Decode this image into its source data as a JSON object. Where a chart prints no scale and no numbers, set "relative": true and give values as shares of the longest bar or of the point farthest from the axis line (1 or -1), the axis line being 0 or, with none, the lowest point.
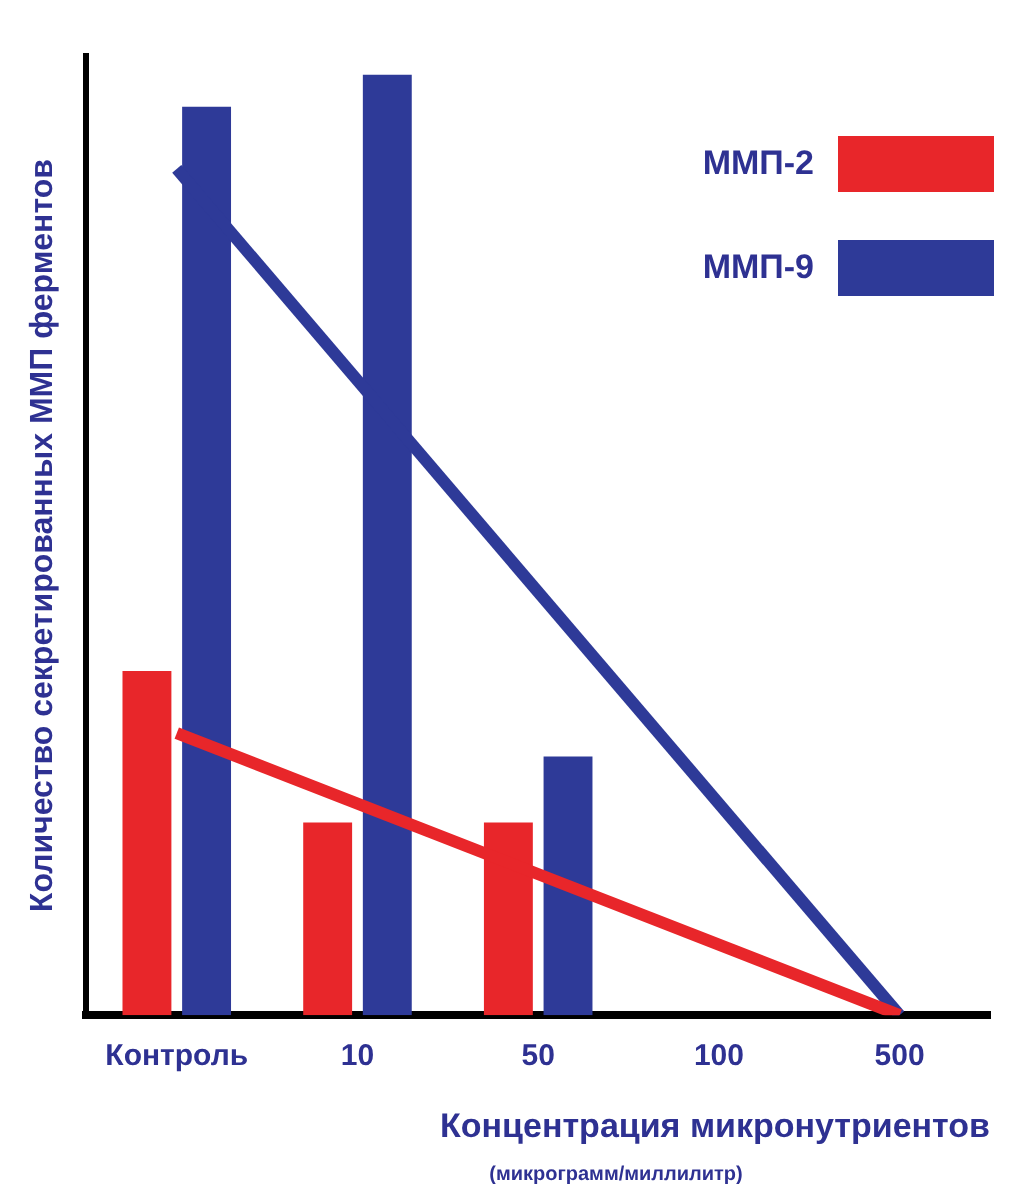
{
  "chart_data": {
    "type": "bar",
    "relative": true,
    "xlabel": "Концентрация микронутриентов",
    "ylabel": "Количество секретированных ММП ферментов",
    "categories": [
      "Контроль",
      "10",
      "50",
      "100",
      "500"
    ],
    "series": [
      {
        "name": "ММП-2",
        "color": "#e8262a",
        "values": [
          0.366,
          0.205,
          0.205,
          0,
          0
        ]
      },
      {
        "name": "ММП-9",
        "color": "#2e3a98",
        "values": [
          0.966,
          1,
          0.275,
          0,
          0
        ]
      },
      {
        "type": "line",
        "color": "#e8262a",
        "values": [
          0.3,
          null,
          null,
          null,
          0
        ]
      },
      {
        "type": "line",
        "color": "#2e3a98",
        "values": [
          0.9,
          null,
          null,
          null,
          0
        ]
      }
    ],
    "annotations": [
      "(микрограмм/миллилитр)"
    ],
    "legend": "top right",
    "grid": false
  }
}
